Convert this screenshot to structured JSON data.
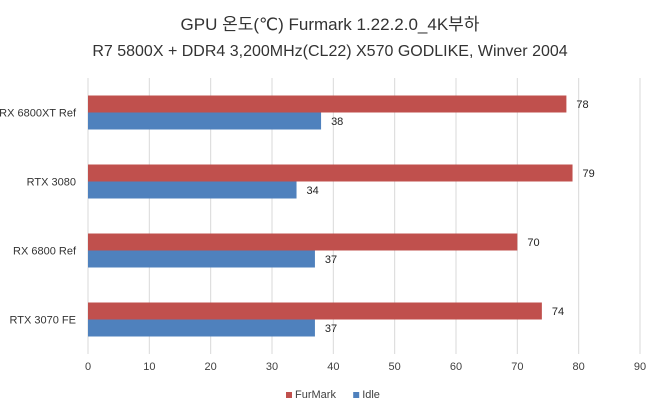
{
  "chart_data": {
    "type": "bar",
    "orientation": "horizontal",
    "title": "GPU 온도(℃) Furmark 1.22.2.0_4K부하",
    "subtitle": "R7 5800X + DDR4 3,200MHz(CL22) X570 GODLIKE, Winver 2004",
    "categories": [
      "RX 6800XT Ref",
      "RTX 3080",
      "RX 6800 Ref",
      "RTX 3070 FE"
    ],
    "series": [
      {
        "name": "FurMark",
        "color": "#c0504d",
        "values": [
          78,
          79,
          70,
          74
        ]
      },
      {
        "name": "Idle",
        "color": "#4f81bd",
        "values": [
          38,
          34,
          37,
          37
        ]
      }
    ],
    "xlim": [
      0,
      90
    ],
    "xticks": [
      0,
      10,
      20,
      30,
      40,
      50,
      60,
      70,
      80,
      90
    ],
    "grid": true,
    "legend_position": "bottom"
  }
}
